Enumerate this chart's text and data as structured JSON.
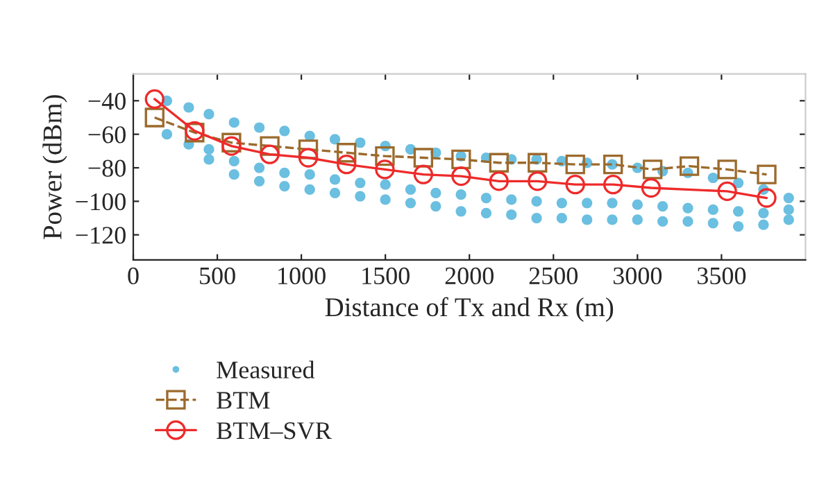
{
  "chart_data": {
    "type": "line",
    "xlabel": "Distance of Tx and Rx (m)",
    "ylabel": "Power (dBm)",
    "xlim": [
      0,
      4000
    ],
    "ylim": [
      -135,
      -24
    ],
    "xticks": [
      0,
      500,
      1000,
      1500,
      2000,
      2500,
      3000,
      3500
    ],
    "yticks": [
      -40,
      -60,
      -80,
      -100,
      -120
    ],
    "grid": false,
    "legend": "bottom left",
    "series": [
      {
        "name": "Measured",
        "type": "scatter",
        "color": "#6bbfe0",
        "marker": "circle",
        "x": [
          200,
          330,
          450,
          600,
          750,
          900,
          1050,
          1200,
          1350,
          1500,
          1650,
          1800,
          1950,
          2100,
          2250,
          2400,
          2550,
          2700,
          2850,
          3000,
          3150,
          3300,
          3450,
          3600,
          3750,
          3900,
          200,
          330,
          450,
          600,
          750,
          900,
          1050,
          1200,
          1350,
          1500,
          1650,
          1800,
          1950,
          2100,
          2250,
          2400,
          2550,
          2700,
          2850,
          3000,
          3150,
          3300,
          3450,
          3600,
          3750,
          3900,
          450,
          600,
          750,
          900,
          1050,
          1200,
          1350,
          1500,
          1650,
          1800,
          1950,
          2100,
          2250,
          2400,
          2550,
          2700,
          2850,
          3000,
          3150,
          3300,
          3450,
          3600,
          3750,
          3900
        ],
        "values": [
          -40,
          -44,
          -48,
          -53,
          -56,
          -58,
          -61,
          -63,
          -65,
          -67,
          -69,
          -71,
          -73,
          -74,
          -75,
          -75,
          -76,
          -77,
          -78,
          -80,
          -82,
          -83,
          -86,
          -89,
          -93,
          -98,
          -60,
          -66,
          -75,
          -84,
          -88,
          -91,
          -93,
          -95,
          -97,
          -99,
          -101,
          -103,
          -106,
          -107,
          -108,
          -110,
          -110,
          -111,
          -111,
          -111,
          -112,
          -112,
          -113,
          -115,
          -114,
          -111,
          -69,
          -76,
          -80,
          -83,
          -84,
          -87,
          -89,
          -90,
          -93,
          -95,
          -96,
          -98,
          -99,
          -100,
          -101,
          -101,
          -101,
          -102,
          -103,
          -104,
          -105,
          -106,
          -107,
          -105
        ]
      },
      {
        "name": "BTM",
        "color": "#9b6a2c",
        "marker": "square",
        "line_style": "dashed",
        "x": [
          127,
          365,
          584,
          812,
          1041,
          1269,
          1497,
          1726,
          1951,
          2176,
          2405,
          2630,
          2855,
          3090,
          3309,
          3534,
          3769
        ],
        "values": [
          -50,
          -59,
          -65,
          -67,
          -69,
          -71,
          -73,
          -74,
          -75,
          -77,
          -77,
          -78,
          -78,
          -81,
          -79,
          -81,
          -84
        ]
      },
      {
        "name": "BTM–SVR",
        "color": "#ee2a2a",
        "marker": "circle",
        "line_style": "solid",
        "x": [
          127,
          365,
          584,
          812,
          1041,
          1269,
          1497,
          1726,
          1951,
          2176,
          2405,
          2630,
          2855,
          3081,
          3534,
          3769
        ],
        "values": [
          -39,
          -58,
          -67,
          -72,
          -74,
          -78,
          -81,
          -84,
          -85,
          -88,
          -88,
          -90,
          -90,
          -92,
          -94,
          -98
        ]
      }
    ]
  }
}
